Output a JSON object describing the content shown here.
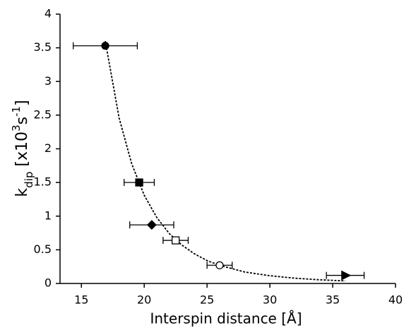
{
  "chart_data": {
    "type": "scatter",
    "x_label": "Interspin distance [Å]",
    "y_label": [
      {
        "text": "k"
      },
      {
        "text": "dip",
        "shift": "sub"
      },
      {
        "text": " [x10"
      },
      {
        "text": "3",
        "shift": "super"
      },
      {
        "text": "s"
      },
      {
        "text": "-1",
        "shift": "super"
      },
      {
        "text": "]"
      }
    ],
    "xlim": [
      13.3,
      40
    ],
    "ylim": [
      0,
      4
    ],
    "xticks": [
      15,
      20,
      25,
      30,
      35,
      40
    ],
    "yticks": [
      0,
      0.5,
      1,
      1.5,
      2,
      2.5,
      3,
      3.5,
      4
    ],
    "color": "#000000",
    "points": [
      {
        "x": 16.9,
        "y": 3.53,
        "xerr": 2.55,
        "marker": "circle",
        "filled": true
      },
      {
        "x": 19.6,
        "y": 1.5,
        "xerr": 1.2,
        "marker": "square",
        "filled": true
      },
      {
        "x": 20.6,
        "y": 0.87,
        "xerr": 1.75,
        "marker": "diamond",
        "filled": true
      },
      {
        "x": 22.5,
        "y": 0.64,
        "xerr": 1.0,
        "marker": "square",
        "filled": false
      },
      {
        "x": 26,
        "y": 0.27,
        "xerr": 1.0,
        "marker": "circle",
        "filled": false
      },
      {
        "x": 36,
        "y": 0.12,
        "xerr": 1.5,
        "marker": "triangle-right",
        "filled": true
      }
    ],
    "fit": {
      "x": [
        16.9,
        18,
        19,
        20,
        21,
        22,
        23,
        24,
        25,
        26,
        28,
        30,
        32,
        34,
        36
      ],
      "y": [
        3.6,
        2.46,
        1.78,
        1.31,
        0.98,
        0.74,
        0.57,
        0.44,
        0.34,
        0.27,
        0.17,
        0.115,
        0.078,
        0.054,
        0.038
      ]
    }
  }
}
